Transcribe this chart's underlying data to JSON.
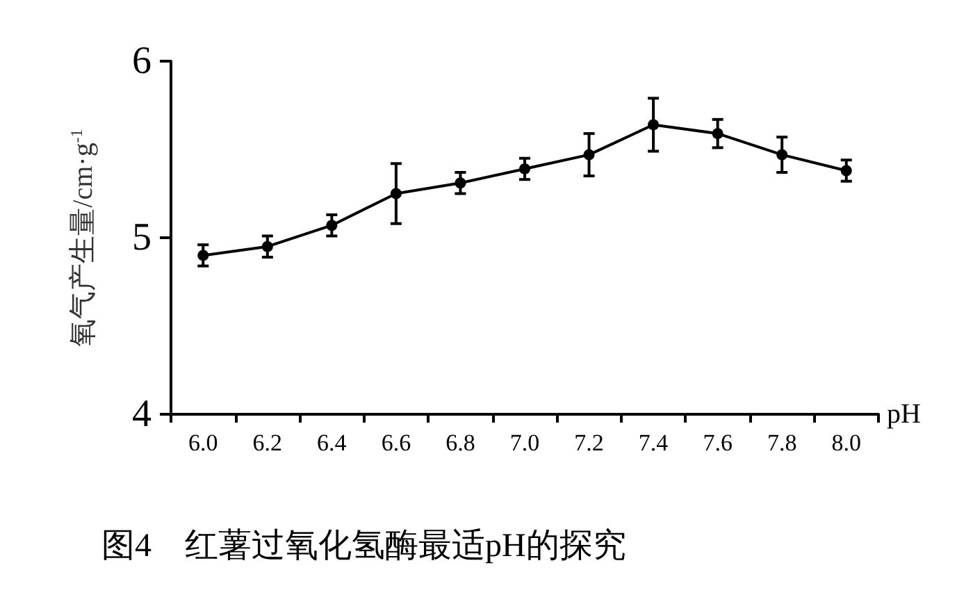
{
  "chart_data": {
    "type": "line",
    "title": "图4　红薯过氧化氢酶最适pH的探究",
    "xlabel": "pH",
    "ylabel": "氧气产生量/cm·g$^{-1}$",
    "categories": [
      "6.0",
      "6.2",
      "6.4",
      "6.6",
      "6.8",
      "7.0",
      "7.2",
      "7.4",
      "7.6",
      "7.8",
      "8.0"
    ],
    "series": [
      {
        "color": "#000000",
        "values": [
          4.9,
          4.95,
          5.07,
          5.25,
          5.31,
          5.39,
          5.47,
          5.64,
          5.59,
          5.47,
          5.38
        ],
        "errors": [
          0.06,
          0.06,
          0.06,
          0.17,
          0.06,
          0.06,
          0.12,
          0.15,
          0.08,
          0.1,
          0.06
        ]
      }
    ],
    "ylim": [
      4,
      6
    ],
    "yticks": [
      4,
      5,
      6
    ],
    "grid": false,
    "marker": "circle",
    "line_style": "solid"
  }
}
